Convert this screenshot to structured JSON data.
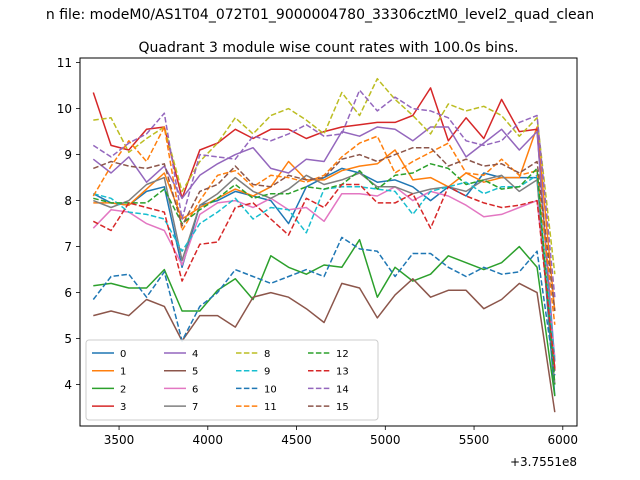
{
  "figure": {
    "suptitle": "n file: modeM0/AS1T04_072T01_9000004780_33306cztM0_level2_quad_clean",
    "offset_label": "+3.7551e8"
  },
  "chart_data": {
    "type": "line",
    "title": "Quadrant 3 module wise count rates with 100.0s bins.",
    "xlabel": "",
    "ylabel": "",
    "xlim": [
      3280,
      6080
    ],
    "ylim": [
      3.1,
      11.1
    ],
    "x_ticks": [
      3500,
      4000,
      4500,
      5000,
      5500,
      6000
    ],
    "y_ticks": [
      4,
      5,
      6,
      7,
      8,
      9,
      10,
      11
    ],
    "x_tick_labels": [
      "3500",
      "4000",
      "4500",
      "5000",
      "5500",
      "6000"
    ],
    "y_tick_labels": [
      "4",
      "5",
      "6",
      "7",
      "8",
      "9",
      "10",
      "11"
    ],
    "grid": false,
    "legend_position": "lower-left",
    "legend_columns": 4,
    "x": [
      3355,
      3455,
      3555,
      3655,
      3755,
      3855,
      3955,
      4055,
      4155,
      4255,
      4355,
      4455,
      4555,
      4655,
      4755,
      4855,
      4955,
      5055,
      5155,
      5255,
      5355,
      5455,
      5555,
      5655,
      5755,
      5855,
      5955
    ],
    "series": [
      {
        "name": "0",
        "color": "#1f77b4",
        "dash": "solid",
        "values": [
          8.15,
          7.95,
          7.9,
          8.2,
          8.3,
          6.55,
          7.9,
          8.0,
          8.2,
          8.1,
          8.0,
          7.5,
          8.3,
          8.5,
          8.7,
          8.6,
          8.4,
          8.45,
          8.3,
          8.0,
          8.3,
          8.1,
          8.6,
          8.5,
          8.5,
          8.5,
          3.75
        ]
      },
      {
        "name": "1",
        "color": "#ff7f0e",
        "dash": "solid",
        "values": [
          7.95,
          7.95,
          7.9,
          8.25,
          8.6,
          7.6,
          7.85,
          8.05,
          8.25,
          8.1,
          8.3,
          8.85,
          8.45,
          8.45,
          8.65,
          8.75,
          8.8,
          9.1,
          8.45,
          8.5,
          8.3,
          8.6,
          8.4,
          8.5,
          8.5,
          9.6,
          5.6
        ]
      },
      {
        "name": "2",
        "color": "#2ca02c",
        "dash": "solid",
        "values": [
          6.15,
          6.2,
          6.1,
          6.1,
          6.5,
          5.6,
          5.6,
          6.05,
          6.3,
          5.85,
          6.8,
          6.55,
          6.4,
          6.6,
          6.55,
          7.15,
          5.9,
          6.55,
          6.25,
          6.4,
          6.8,
          6.65,
          6.5,
          6.65,
          7.0,
          6.55,
          3.75
        ]
      },
      {
        "name": "3",
        "color": "#d62728",
        "dash": "solid",
        "values": [
          10.35,
          9.2,
          9.1,
          9.55,
          9.6,
          8.05,
          9.1,
          9.25,
          9.55,
          9.35,
          9.55,
          9.55,
          9.35,
          9.5,
          9.6,
          9.65,
          9.7,
          9.7,
          9.85,
          10.45,
          9.3,
          9.8,
          9.35,
          10.2,
          9.5,
          9.55,
          4.3
        ]
      },
      {
        "name": "4",
        "color": "#9467bd",
        "dash": "solid",
        "values": [
          8.9,
          8.6,
          8.95,
          8.4,
          8.75,
          8.05,
          8.55,
          8.8,
          9.0,
          9.15,
          8.7,
          8.6,
          8.9,
          8.85,
          9.5,
          9.4,
          9.6,
          9.55,
          9.3,
          9.6,
          9.6,
          8.95,
          9.25,
          9.55,
          9.1,
          9.5,
          4.5
        ]
      },
      {
        "name": "5",
        "color": "#8c564b",
        "dash": "solid",
        "values": [
          5.5,
          5.6,
          5.5,
          5.85,
          5.7,
          4.95,
          5.5,
          5.5,
          5.25,
          5.9,
          6.0,
          5.9,
          5.65,
          5.35,
          6.2,
          6.1,
          5.45,
          5.95,
          6.3,
          5.9,
          6.05,
          6.05,
          5.65,
          5.85,
          6.2,
          6.0,
          3.4
        ]
      },
      {
        "name": "6",
        "color": "#e377c2",
        "dash": "solid",
        "values": [
          7.4,
          7.8,
          7.75,
          7.5,
          7.35,
          6.6,
          7.7,
          7.95,
          8.0,
          7.85,
          8.05,
          7.8,
          7.85,
          7.55,
          8.15,
          8.15,
          8.1,
          8.3,
          8.0,
          8.2,
          8.1,
          7.9,
          7.65,
          7.7,
          7.85,
          8.0,
          4.6
        ]
      },
      {
        "name": "7",
        "color": "#7f7f7f",
        "dash": "solid",
        "values": [
          8.0,
          7.85,
          8.0,
          8.35,
          8.5,
          6.7,
          7.9,
          8.15,
          8.5,
          8.2,
          8.05,
          8.25,
          8.55,
          8.35,
          8.45,
          8.6,
          8.3,
          8.3,
          8.15,
          8.25,
          8.3,
          8.2,
          8.45,
          8.55,
          8.2,
          8.45,
          4.0
        ]
      },
      {
        "name": "8",
        "color": "#bcbd22",
        "dash": "dashed",
        "values": [
          9.75,
          9.8,
          9.05,
          9.35,
          9.6,
          8.2,
          8.85,
          9.25,
          9.8,
          9.45,
          9.85,
          10.0,
          9.75,
          9.45,
          10.35,
          9.85,
          10.65,
          10.2,
          9.85,
          9.45,
          10.1,
          9.95,
          10.05,
          9.85,
          9.4,
          9.8,
          6.4
        ]
      },
      {
        "name": "9",
        "color": "#17becf",
        "dash": "dashed",
        "values": [
          8.15,
          8.05,
          7.75,
          7.7,
          7.6,
          6.9,
          7.5,
          7.75,
          8.05,
          7.6,
          7.85,
          7.8,
          7.3,
          8.25,
          8.3,
          8.3,
          8.25,
          8.2,
          7.7,
          8.2,
          8.3,
          8.4,
          8.15,
          8.3,
          8.3,
          8.55,
          4.5
        ]
      },
      {
        "name": "10",
        "color": "#1f77b4",
        "dash": "dashed",
        "values": [
          5.85,
          6.35,
          6.4,
          5.9,
          6.45,
          4.95,
          5.7,
          6.0,
          6.5,
          6.35,
          6.2,
          6.35,
          6.5,
          6.35,
          7.2,
          6.95,
          6.9,
          6.35,
          6.85,
          6.85,
          6.55,
          6.35,
          6.55,
          6.4,
          6.45,
          6.9,
          4.2
        ]
      },
      {
        "name": "11",
        "color": "#ff7f0e",
        "dash": "dashed",
        "values": [
          8.1,
          8.75,
          9.3,
          8.85,
          9.6,
          7.35,
          8.0,
          8.55,
          8.65,
          8.3,
          8.55,
          8.5,
          8.4,
          8.55,
          8.95,
          9.25,
          9.4,
          8.6,
          8.85,
          9.05,
          9.25,
          8.6,
          8.55,
          8.9,
          8.55,
          8.65,
          5.3
        ]
      },
      {
        "name": "12",
        "color": "#2ca02c",
        "dash": "dashed",
        "values": [
          8.05,
          7.95,
          7.95,
          7.95,
          8.25,
          7.5,
          7.8,
          8.05,
          8.35,
          8.05,
          8.15,
          8.15,
          8.3,
          8.25,
          8.35,
          8.65,
          8.25,
          8.55,
          8.6,
          8.8,
          8.7,
          8.35,
          8.45,
          8.25,
          8.3,
          8.7,
          4.0
        ]
      },
      {
        "name": "13",
        "color": "#d62728",
        "dash": "dashed",
        "values": [
          7.55,
          7.35,
          7.95,
          7.85,
          7.75,
          6.25,
          7.05,
          7.1,
          7.85,
          7.95,
          7.6,
          7.25,
          8.05,
          7.85,
          8.35,
          8.35,
          7.95,
          7.95,
          8.15,
          7.4,
          8.3,
          8.1,
          7.95,
          7.85,
          7.9,
          8.0,
          4.35
        ]
      },
      {
        "name": "14",
        "color": "#9467bd",
        "dash": "dashed",
        "values": [
          9.2,
          8.95,
          9.25,
          9.45,
          9.9,
          7.6,
          9.0,
          8.95,
          8.9,
          9.4,
          9.3,
          9.45,
          9.65,
          9.4,
          9.45,
          10.4,
          9.95,
          10.25,
          10.0,
          9.95,
          9.8,
          9.3,
          9.2,
          9.3,
          9.7,
          9.85,
          5.9
        ]
      },
      {
        "name": "15",
        "color": "#8c564b",
        "dash": "dashed",
        "values": [
          8.7,
          8.85,
          8.75,
          8.7,
          8.8,
          7.45,
          8.2,
          8.35,
          8.75,
          8.35,
          8.3,
          8.55,
          8.45,
          8.5,
          8.9,
          9.0,
          8.85,
          9.0,
          9.15,
          9.15,
          8.75,
          8.9,
          8.75,
          8.8,
          8.6,
          8.85,
          5.6
        ]
      }
    ]
  }
}
